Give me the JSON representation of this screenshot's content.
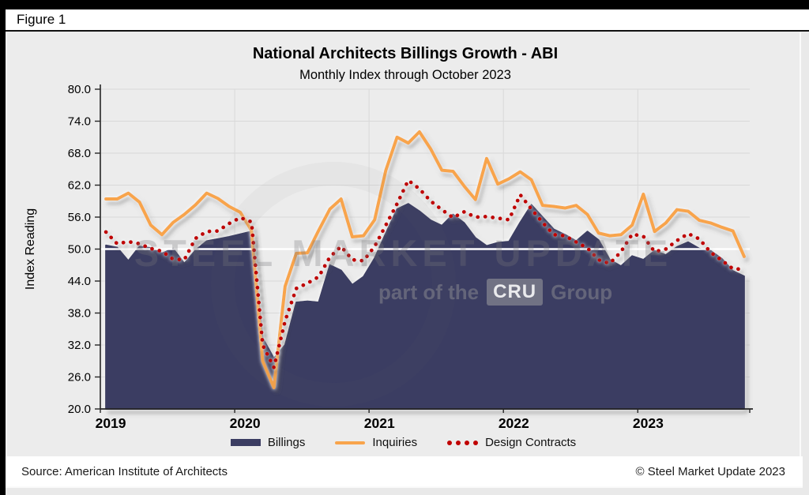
{
  "figure_label": "Figure 1",
  "header": {
    "title": "National Architects Billings Growth - ABI",
    "subtitle": "Monthly Index through October 2023"
  },
  "footer": {
    "source": "Source: American Institute of Architects",
    "copyright": "© Steel Market Update 2023"
  },
  "watermark": {
    "line1": "STEEL MARKET UPDATE",
    "line2_prefix": "part of the",
    "line2_box": "CRU",
    "line2_suffix": "Group"
  },
  "y_axis": {
    "label": "Index Reading",
    "ticks": [
      80,
      74,
      68,
      62,
      56,
      50,
      44,
      38,
      32,
      26,
      20
    ]
  },
  "x_axis": {
    "years": [
      "2019",
      "2020",
      "2021",
      "2022",
      "2023"
    ]
  },
  "colors": {
    "billings": "#3B3D62",
    "inquiries": "#F8A44C",
    "design_contracts": "#C00000",
    "baseline_50": "#FFFFFF",
    "grid": "#D9D9D9",
    "axis": "#262626",
    "plot_bg": "#ECECEC"
  },
  "legend": [
    {
      "label": "Billings",
      "type": "area"
    },
    {
      "label": "Inquiries",
      "type": "line"
    },
    {
      "label": "Design Contracts",
      "type": "dotted-line"
    }
  ],
  "chart_data": {
    "type": "combo: area (Billings) + line (Inquiries) + dotted line (Design Contracts)",
    "title": "National Architects Billings Growth - ABI",
    "subtitle": "Monthly Index through October 2023",
    "ylabel": "Index Reading",
    "ylim": [
      20,
      80
    ],
    "y_step": 6,
    "baseline": 50,
    "grid": "horizontal + vertical year boundaries",
    "legend_position": "bottom",
    "x": [
      "2019-01",
      "2019-02",
      "2019-03",
      "2019-04",
      "2019-05",
      "2019-06",
      "2019-07",
      "2019-08",
      "2019-09",
      "2019-10",
      "2019-11",
      "2019-12",
      "2020-01",
      "2020-02",
      "2020-03",
      "2020-04",
      "2020-05",
      "2020-06",
      "2020-07",
      "2020-08",
      "2020-09",
      "2020-10",
      "2020-11",
      "2020-12",
      "2021-01",
      "2021-02",
      "2021-03",
      "2021-04",
      "2021-05",
      "2021-06",
      "2021-07",
      "2021-08",
      "2021-09",
      "2021-10",
      "2021-11",
      "2021-12",
      "2022-01",
      "2022-02",
      "2022-03",
      "2022-04",
      "2022-05",
      "2022-06",
      "2022-07",
      "2022-08",
      "2022-09",
      "2022-10",
      "2022-11",
      "2022-12",
      "2023-01",
      "2023-02",
      "2023-03",
      "2023-04",
      "2023-05",
      "2023-06",
      "2023-07",
      "2023-08",
      "2023-09",
      "2023-10"
    ],
    "series": [
      {
        "name": "Billings",
        "type": "area",
        "values": [
          50.7,
          50.3,
          47.8,
          50.5,
          50.2,
          49.2,
          50.1,
          47.3,
          49.8,
          51.5,
          51.9,
          52.3,
          52.8,
          53.3,
          33.3,
          29.5,
          32.0,
          40.0,
          40.2,
          40.0,
          47.0,
          46.0,
          43.3,
          44.8,
          48.3,
          53.0,
          57.5,
          58.5,
          57.1,
          55.4,
          54.4,
          56.5,
          54.9,
          52.1,
          50.6,
          51.2,
          51.4,
          55.0,
          58.3,
          56.0,
          53.7,
          52.7,
          51.5,
          53.3,
          51.7,
          48.0,
          46.8,
          48.7,
          48.0,
          49.7,
          48.9,
          50.4,
          51.3,
          50.1,
          49.7,
          48.2,
          45.9,
          44.9
        ]
      },
      {
        "name": "Inquiries",
        "type": "line",
        "values": [
          59.4,
          59.4,
          60.5,
          58.8,
          54.5,
          52.7,
          55.0,
          56.5,
          58.3,
          60.5,
          59.5,
          58.0,
          56.9,
          53.5,
          29.0,
          24.0,
          43.0,
          49.2,
          49.3,
          53.5,
          57.5,
          59.4,
          52.3,
          52.5,
          55.5,
          64.8,
          71.0,
          69.9,
          72.0,
          68.8,
          64.8,
          64.6,
          61.8,
          59.3,
          67.0,
          62.2,
          63.2,
          64.5,
          63.0,
          58.2,
          58.0,
          57.7,
          58.2,
          56.5,
          53.0,
          52.5,
          52.7,
          54.5,
          60.3,
          53.3,
          54.9,
          57.4,
          57.1,
          55.4,
          54.9,
          54.1,
          53.4,
          48.6
        ]
      },
      {
        "name": "Design Contracts",
        "type": "dotted-line",
        "values": [
          53.2,
          51.0,
          51.4,
          51.0,
          50.1,
          49.6,
          48.1,
          48.0,
          52.0,
          53.3,
          53.4,
          54.8,
          55.9,
          55.1,
          32.0,
          27.8,
          36.5,
          42.6,
          43.6,
          44.8,
          48.5,
          50.5,
          48.0,
          47.8,
          50.5,
          54.5,
          58.5,
          62.9,
          61.3,
          59.0,
          57.4,
          55.9,
          57.0,
          56.0,
          56.1,
          55.8,
          55.5,
          60.2,
          57.5,
          55.0,
          52.7,
          52.5,
          51.3,
          50.2,
          48.0,
          47.3,
          49.5,
          52.8,
          52.4,
          49.5,
          50.0,
          51.6,
          52.9,
          51.9,
          49.4,
          47.9,
          46.3,
          46.2
        ]
      }
    ]
  }
}
